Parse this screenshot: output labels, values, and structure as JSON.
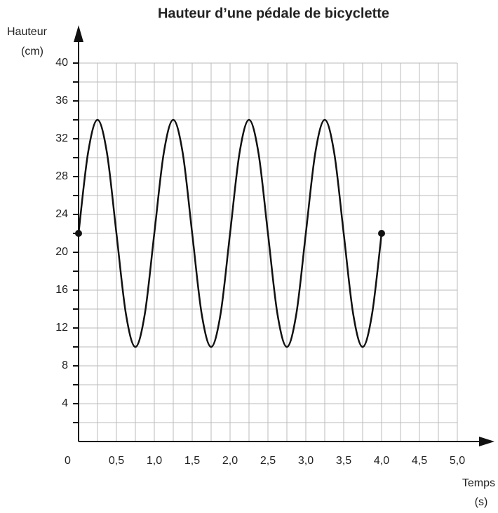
{
  "chart_data": {
    "type": "line",
    "title": "Hauteur d’une pédale de bicyclette",
    "ylabel": [
      "Hauteur",
      "(cm)"
    ],
    "xlabel": [
      "Temps",
      "(s)"
    ],
    "x": [
      0,
      0.125,
      0.25,
      0.375,
      0.5,
      0.625,
      0.75,
      0.875,
      1,
      1.125,
      1.25,
      1.375,
      1.5,
      1.625,
      1.75,
      1.875,
      2,
      2.125,
      2.25,
      2.375,
      2.5,
      2.625,
      2.75,
      2.875,
      3,
      3.125,
      3.25,
      3.375,
      3.5,
      3.625,
      3.75,
      3.875,
      4
    ],
    "series": [
      {
        "color": "#111111",
        "values": [
          22,
          30.5,
          34,
          30.5,
          22,
          13.5,
          10,
          13.5,
          22,
          30.5,
          34,
          30.5,
          22,
          13.5,
          10,
          13.5,
          22,
          30.5,
          34,
          30.5,
          22,
          13.5,
          10,
          13.5,
          22,
          30.5,
          34,
          30.5,
          22,
          13.5,
          10,
          13.5,
          22
        ]
      }
    ],
    "endpoint_markers": true,
    "xlim": [
      0,
      5
    ],
    "ylim": [
      0,
      40
    ],
    "xticks": [
      0,
      {
        "value": 0.5,
        "label": "0,5"
      },
      {
        "value": 1,
        "label": "1,0"
      },
      {
        "value": 1.5,
        "label": "1,5"
      },
      {
        "value": 2,
        "label": "2,0"
      },
      {
        "value": 2.5,
        "label": "2,5"
      },
      {
        "value": 3,
        "label": "3,0"
      },
      {
        "value": 3.5,
        "label": "3,5"
      },
      {
        "value": 4,
        "label": "4,0"
      },
      {
        "value": 4.5,
        "label": "4,5"
      },
      {
        "value": 5,
        "label": "5,0"
      }
    ],
    "yticks": [
      4,
      8,
      12,
      16,
      20,
      24,
      28,
      32,
      36,
      40
    ],
    "x_grid": [
      0.25,
      0.5,
      0.75,
      1,
      1.25,
      1.5,
      1.75,
      2,
      2.25,
      2.5,
      2.75,
      3,
      3.25,
      3.5,
      3.75,
      4,
      4.25,
      4.5,
      4.75,
      5
    ],
    "y_grid": [
      2,
      4,
      6,
      8,
      10,
      12,
      14,
      16,
      18,
      20,
      22,
      24,
      26,
      28,
      30,
      32,
      34,
      36,
      38,
      40
    ],
    "grid": true
  }
}
